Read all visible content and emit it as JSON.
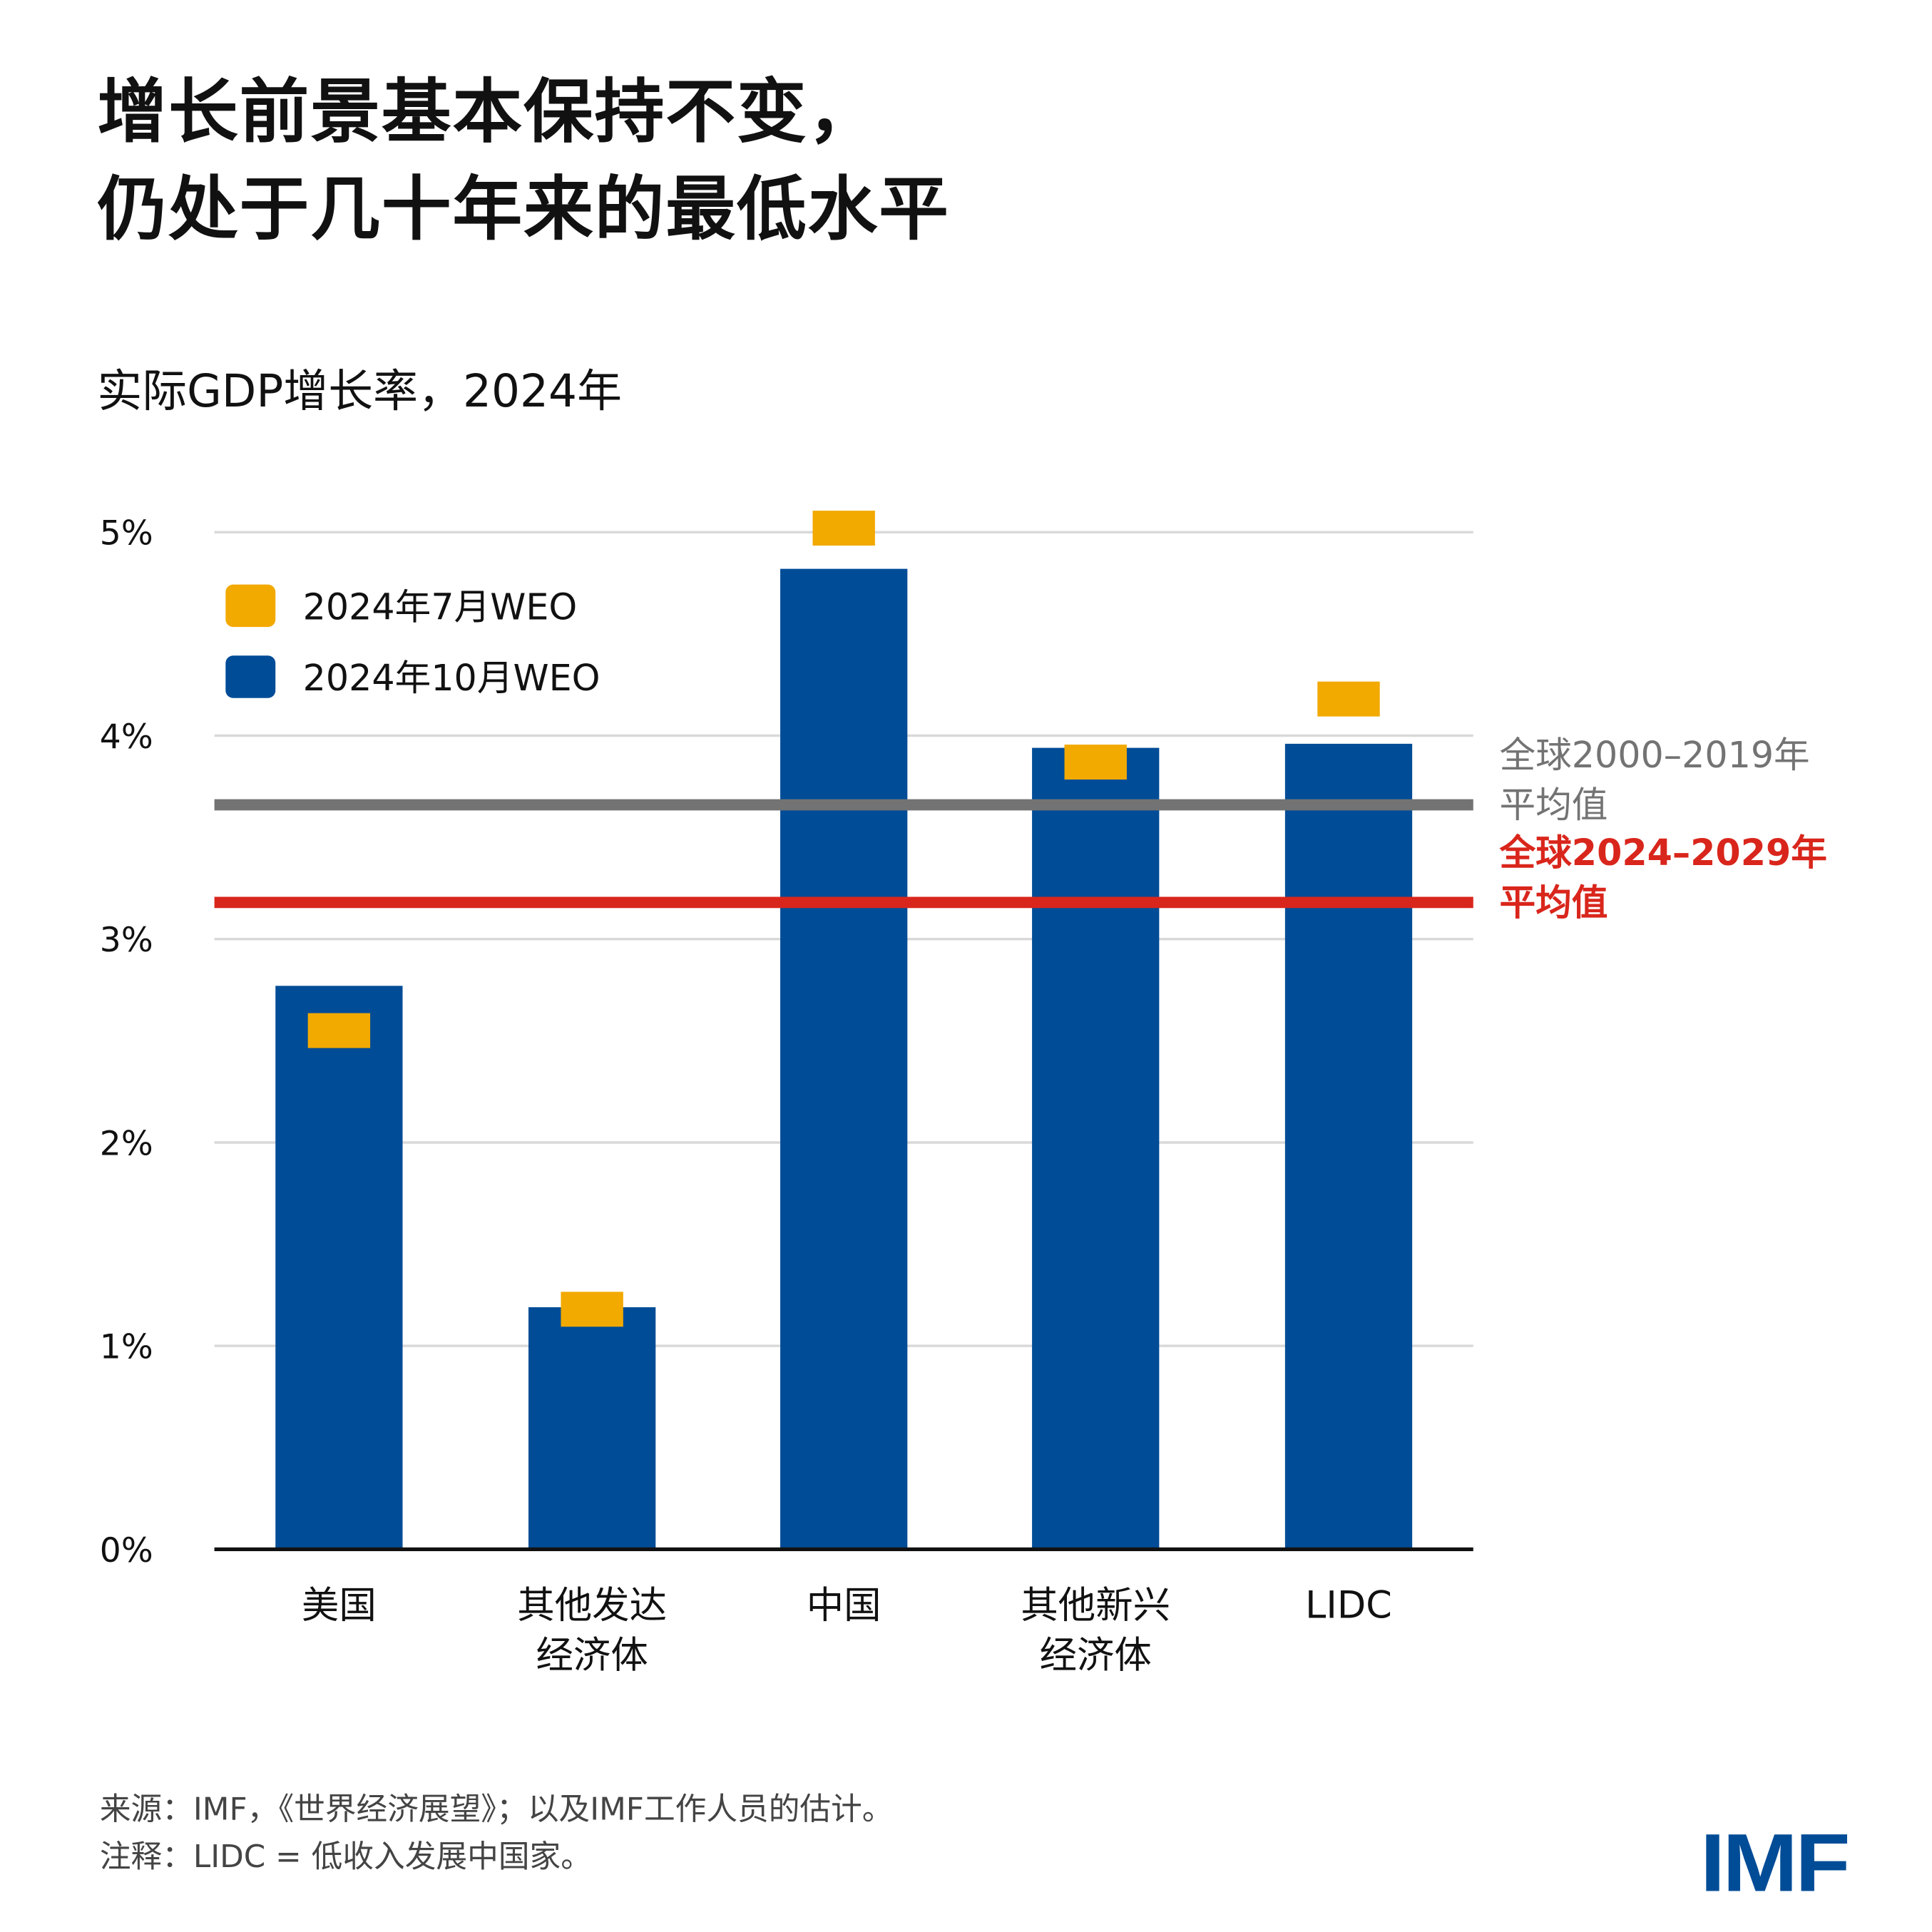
{
  "title_lines": [
    "增长前景基本保持不变，",
    "仍处于几十年来的最低水平"
  ],
  "subtitle": "实际GDP增长率，2024年",
  "colors": {
    "october": "#004C97",
    "july": "#F2A900",
    "global_2000_2019": "#737373",
    "global_2024_2029": "#D9261C",
    "grid": "#D9D9D9"
  },
  "chart_data": {
    "type": "bar",
    "title": "实际GDP增长率，2024年",
    "categories": [
      [
        "美国"
      ],
      [
        "其他发达",
        "经济体"
      ],
      [
        "中国"
      ],
      [
        "其他新兴",
        "经济体"
      ],
      [
        "LIDC"
      ]
    ],
    "series": [
      {
        "name": "2024年10月WEO",
        "style": "bar",
        "values": [
          2.77,
          1.19,
          4.82,
          3.94,
          3.96
        ]
      },
      {
        "name": "2024年7月WEO",
        "style": "marker",
        "values": [
          2.55,
          1.18,
          5.02,
          3.87,
          4.18
        ]
      }
    ],
    "reference_lines": [
      {
        "label": [
          "全球2000–2019年",
          "平均值"
        ],
        "value": 3.66,
        "color": "#737373"
      },
      {
        "label": [
          "全球2024–2029年",
          "平均值"
        ],
        "value": 3.18,
        "color": "#D9261C"
      }
    ],
    "yticks": [
      "0%",
      "1%",
      "2%",
      "3%",
      "4%",
      "5%"
    ],
    "ylim": [
      0,
      5
    ],
    "grid": true,
    "legend": "top-left"
  },
  "footer": {
    "source": "来源：IMF，《世界经济展望》；以及IMF工作人员的估计。",
    "note": "注释：LIDC = 低收入发展中国家。"
  },
  "logo": "IMF"
}
